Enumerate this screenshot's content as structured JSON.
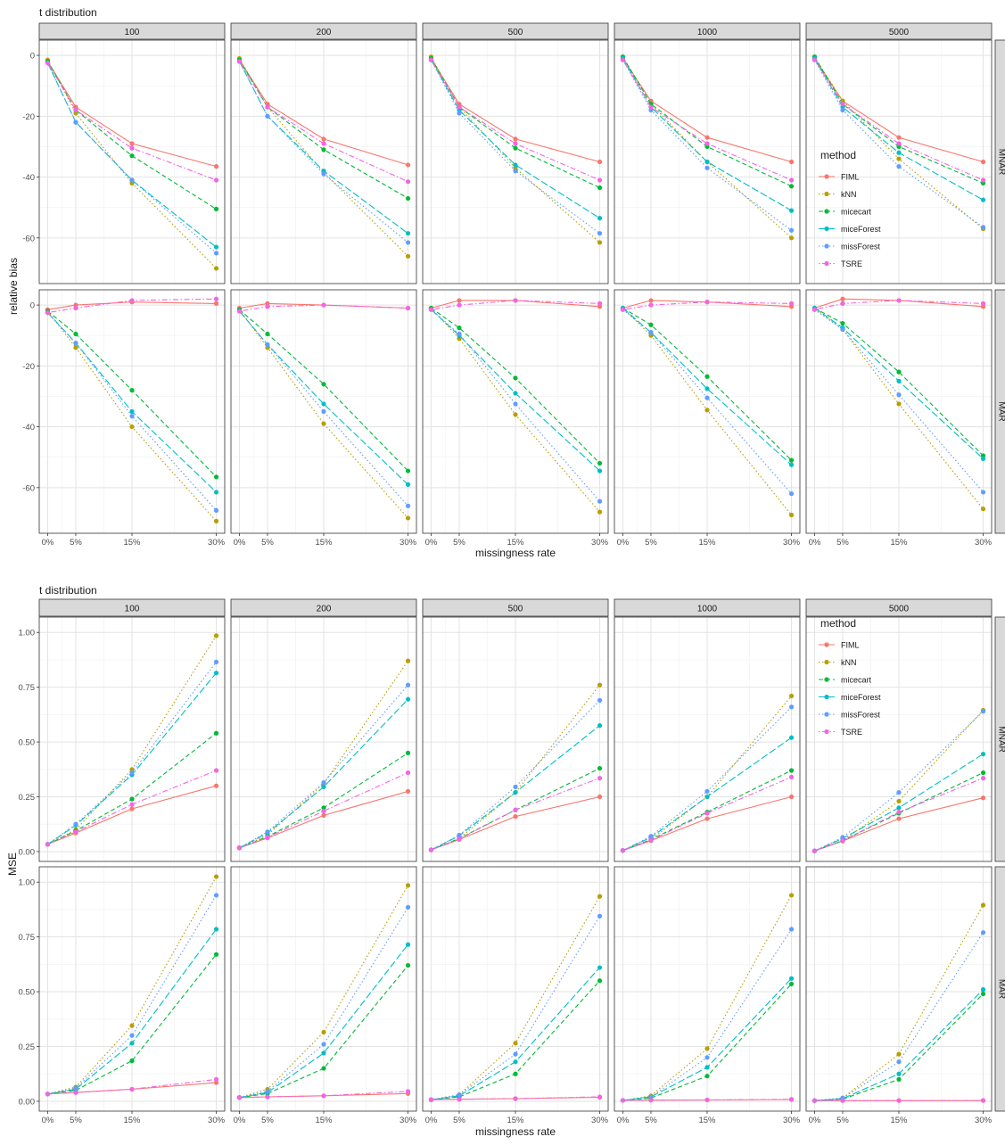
{
  "chart_data": [
    {
      "type": "line",
      "title": "t distribution",
      "xlabel": "missingness rate",
      "ylabel": "relative bias",
      "x": [
        "0%",
        "5%",
        "15%",
        "30%"
      ],
      "x_numeric": [
        0,
        5,
        15,
        30
      ],
      "facet_cols": [
        "100",
        "200",
        "500",
        "1000",
        "5000"
      ],
      "facet_rows": [
        "MNAR",
        "MAR"
      ],
      "ylim": [
        -75,
        5
      ],
      "yticks": [
        0,
        -20,
        -40,
        -60
      ],
      "ytick_labels": [
        "0",
        "-20",
        "-40",
        "-60"
      ],
      "grid": true,
      "legend": {
        "title": "method",
        "placement": "inside-right",
        "panel": "MNAR-5000"
      },
      "series": [
        {
          "name": "FIML",
          "color": "#F8766D",
          "dash": "solid",
          "values": {
            "MNAR": {
              "100": [
                -2,
                -17,
                -29,
                -36.5
              ],
              "200": [
                -1.5,
                -16,
                -27.5,
                -36
              ],
              "500": [
                -1,
                -16,
                -27.5,
                -35
              ],
              "1000": [
                -1,
                -15,
                -27,
                -35
              ],
              "5000": [
                -1,
                -15,
                -27,
                -35
              ]
            },
            "MAR": {
              "100": [
                -1.5,
                0,
                1,
                0.5
              ],
              "200": [
                -1,
                0.5,
                0,
                -1
              ],
              "500": [
                -1,
                1.5,
                1.5,
                -0.5
              ],
              "1000": [
                -1,
                1.5,
                1,
                -0.5
              ],
              "5000": [
                -1,
                2,
                1.5,
                -0.5
              ]
            }
          }
        },
        {
          "name": "kNN",
          "color": "#B79F00",
          "dash": "dotted",
          "values": {
            "MNAR": {
              "100": [
                -1.5,
                -19,
                -42,
                -70
              ],
              "200": [
                -1,
                -17,
                -38.5,
                -66
              ],
              "500": [
                -0.5,
                -17,
                -37,
                -61.5
              ],
              "1000": [
                -0.5,
                -16,
                -35,
                -60
              ],
              "5000": [
                -0.5,
                -15,
                -34,
                -57
              ]
            },
            "MAR": {
              "100": [
                -2,
                -14,
                -40,
                -71
              ],
              "200": [
                -1.5,
                -14,
                -39,
                -70
              ],
              "500": [
                -1,
                -11,
                -36,
                -68
              ],
              "1000": [
                -1,
                -10,
                -34.5,
                -69
              ],
              "5000": [
                -1,
                -8,
                -32.5,
                -67
              ]
            }
          }
        },
        {
          "name": "micecart",
          "color": "#00BA38",
          "dash": "dashed",
          "values": {
            "MNAR": {
              "100": [
                -2,
                -18,
                -33,
                -50.5
              ],
              "200": [
                -1.5,
                -17,
                -31,
                -47
              ],
              "500": [
                -1,
                -17,
                -30.5,
                -43.5
              ],
              "1000": [
                -0.5,
                -16,
                -30,
                -43
              ],
              "5000": [
                -0.5,
                -16,
                -30,
                -42
              ]
            },
            "MAR": {
              "100": [
                -2,
                -9.5,
                -28,
                -56.5
              ],
              "200": [
                -1.5,
                -9.5,
                -26,
                -54.5
              ],
              "500": [
                -1,
                -7.5,
                -24,
                -52
              ],
              "1000": [
                -1,
                -6.5,
                -23.5,
                -51
              ],
              "5000": [
                -1,
                -6,
                -22,
                -49.5
              ]
            }
          }
        },
        {
          "name": "miceForest",
          "color": "#00BFC4",
          "dash": "longdash",
          "values": {
            "MNAR": {
              "100": [
                -2.5,
                -22,
                -41,
                -63
              ],
              "200": [
                -2,
                -20,
                -38,
                -58.5
              ],
              "500": [
                -1.5,
                -18,
                -36,
                -53.5
              ],
              "1000": [
                -1,
                -17,
                -35,
                -51
              ],
              "5000": [
                -1,
                -17,
                -32,
                -47.5
              ]
            },
            "MAR": {
              "100": [
                -2.5,
                -12.5,
                -35,
                -61.5
              ],
              "200": [
                -2,
                -13,
                -32.5,
                -59
              ],
              "500": [
                -1.5,
                -10,
                -29,
                -54.5
              ],
              "1000": [
                -1,
                -9,
                -27.5,
                -52.5
              ],
              "5000": [
                -1,
                -7.5,
                -25,
                -50.5
              ]
            }
          }
        },
        {
          "name": "missForest",
          "color": "#619CFF",
          "dash": "dotted",
          "values": {
            "MNAR": {
              "100": [
                -2.5,
                -22,
                -41,
                -65
              ],
              "200": [
                -2,
                -20,
                -39,
                -61.5
              ],
              "500": [
                -1.5,
                -19,
                -38,
                -58.5
              ],
              "1000": [
                -1.5,
                -18,
                -37,
                -57.5
              ],
              "5000": [
                -1.5,
                -18,
                -36.5,
                -56.5
              ]
            },
            "MAR": {
              "100": [
                -2.5,
                -12.5,
                -36.5,
                -67.5
              ],
              "200": [
                -2,
                -13,
                -35,
                -66
              ],
              "500": [
                -1.5,
                -9.5,
                -32.5,
                -64.5
              ],
              "1000": [
                -1.5,
                -9,
                -30.5,
                -62
              ],
              "5000": [
                -1.5,
                -8,
                -29.5,
                -61.5
              ]
            }
          }
        },
        {
          "name": "TSRE",
          "color": "#F564E3",
          "dash": "dotdash",
          "values": {
            "MNAR": {
              "100": [
                -2.5,
                -18,
                -30.5,
                -41
              ],
              "200": [
                -2,
                -17,
                -29,
                -41.5
              ],
              "500": [
                -1.5,
                -17,
                -29,
                -41
              ],
              "1000": [
                -1.5,
                -17,
                -29,
                -41
              ],
              "5000": [
                -1.5,
                -16,
                -29,
                -41
              ]
            },
            "MAR": {
              "100": [
                -2.5,
                -1,
                1.5,
                2
              ],
              "200": [
                -2,
                -0.5,
                0,
                -1
              ],
              "500": [
                -1.5,
                0,
                1.5,
                0.5
              ],
              "1000": [
                -1.5,
                0,
                1,
                0.5
              ],
              "5000": [
                -1.5,
                0.5,
                1.5,
                0.5
              ]
            }
          }
        }
      ]
    },
    {
      "type": "line",
      "title": "t distribution",
      "xlabel": "missingness rate",
      "ylabel": "MSE",
      "x": [
        "0%",
        "5%",
        "15%",
        "30%"
      ],
      "x_numeric": [
        0,
        5,
        15,
        30
      ],
      "facet_cols": [
        "100",
        "200",
        "500",
        "1000",
        "5000"
      ],
      "facet_rows": [
        "MNAR",
        "MAR"
      ],
      "ylim": [
        -0.045,
        1.07
      ],
      "yticks": [
        0,
        0.25,
        0.5,
        0.75,
        1
      ],
      "ytick_labels": [
        "0.00",
        "0.25",
        "0.50",
        "0.75",
        "1.00"
      ],
      "grid": true,
      "legend": {
        "title": "method",
        "placement": "inside-top-left",
        "panel": "MNAR-5000"
      },
      "series": [
        {
          "name": "FIML",
          "color": "#F8766D",
          "dash": "solid",
          "values": {
            "MNAR": {
              "100": [
                0.033,
                0.085,
                0.195,
                0.3
              ],
              "200": [
                0.017,
                0.062,
                0.165,
                0.275
              ],
              "500": [
                0.008,
                0.055,
                0.16,
                0.25
              ],
              "1000": [
                0.005,
                0.05,
                0.15,
                0.25
              ],
              "5000": [
                0.003,
                0.048,
                0.15,
                0.245
              ]
            },
            "MAR": {
              "100": [
                0.033,
                0.04,
                0.055,
                0.085
              ],
              "200": [
                0.017,
                0.02,
                0.025,
                0.035
              ],
              "500": [
                0.007,
                0.009,
                0.012,
                0.018
              ],
              "1000": [
                0.004,
                0.005,
                0.006,
                0.008
              ],
              "5000": [
                0.003,
                0.003,
                0.003,
                0.003
              ]
            }
          }
        },
        {
          "name": "kNN",
          "color": "#B79F00",
          "dash": "dotted",
          "values": {
            "MNAR": {
              "100": [
                0.033,
                0.1,
                0.375,
                0.985
              ],
              "200": [
                0.017,
                0.075,
                0.31,
                0.87
              ],
              "500": [
                0.008,
                0.06,
                0.27,
                0.76
              ],
              "1000": [
                0.005,
                0.055,
                0.25,
                0.71
              ],
              "5000": [
                0.003,
                0.05,
                0.23,
                0.645
              ]
            },
            "MAR": {
              "100": [
                0.033,
                0.065,
                0.345,
                1.025
              ],
              "200": [
                0.017,
                0.055,
                0.315,
                0.985
              ],
              "500": [
                0.007,
                0.03,
                0.265,
                0.935
              ],
              "1000": [
                0.004,
                0.025,
                0.24,
                0.94
              ],
              "5000": [
                0.003,
                0.015,
                0.215,
                0.895
              ]
            }
          }
        },
        {
          "name": "micecart",
          "color": "#00BA38",
          "dash": "dashed",
          "values": {
            "MNAR": {
              "100": [
                0.033,
                0.095,
                0.24,
                0.54
              ],
              "200": [
                0.017,
                0.068,
                0.2,
                0.45
              ],
              "500": [
                0.008,
                0.06,
                0.19,
                0.38
              ],
              "1000": [
                0.005,
                0.055,
                0.18,
                0.37
              ],
              "5000": [
                0.003,
                0.05,
                0.175,
                0.36
              ]
            },
            "MAR": {
              "100": [
                0.033,
                0.05,
                0.185,
                0.67
              ],
              "200": [
                0.017,
                0.035,
                0.15,
                0.62
              ],
              "500": [
                0.007,
                0.02,
                0.125,
                0.55
              ],
              "1000": [
                0.004,
                0.015,
                0.115,
                0.535
              ],
              "5000": [
                0.003,
                0.01,
                0.1,
                0.49
              ]
            }
          }
        },
        {
          "name": "miceForest",
          "color": "#00BFC4",
          "dash": "longdash",
          "values": {
            "MNAR": {
              "100": [
                0.033,
                0.12,
                0.35,
                0.815
              ],
              "200": [
                0.017,
                0.085,
                0.295,
                0.695
              ],
              "500": [
                0.008,
                0.072,
                0.27,
                0.575
              ],
              "1000": [
                0.005,
                0.065,
                0.25,
                0.52
              ],
              "5000": [
                0.003,
                0.06,
                0.2,
                0.445
              ]
            },
            "MAR": {
              "100": [
                0.033,
                0.055,
                0.265,
                0.785
              ],
              "200": [
                0.017,
                0.04,
                0.22,
                0.715
              ],
              "500": [
                0.007,
                0.025,
                0.18,
                0.61
              ],
              "1000": [
                0.004,
                0.02,
                0.155,
                0.56
              ],
              "5000": [
                0.003,
                0.012,
                0.125,
                0.51
              ]
            }
          }
        },
        {
          "name": "missForest",
          "color": "#619CFF",
          "dash": "dotted",
          "values": {
            "MNAR": {
              "100": [
                0.033,
                0.125,
                0.36,
                0.865
              ],
              "200": [
                0.017,
                0.09,
                0.315,
                0.76
              ],
              "500": [
                0.008,
                0.075,
                0.295,
                0.69
              ],
              "1000": [
                0.005,
                0.07,
                0.275,
                0.66
              ],
              "5000": [
                0.003,
                0.065,
                0.27,
                0.64
              ]
            },
            "MAR": {
              "100": [
                0.033,
                0.06,
                0.3,
                0.94
              ],
              "200": [
                0.017,
                0.045,
                0.26,
                0.885
              ],
              "500": [
                0.007,
                0.03,
                0.215,
                0.845
              ],
              "1000": [
                0.004,
                0.02,
                0.2,
                0.785
              ],
              "5000": [
                0.003,
                0.015,
                0.18,
                0.77
              ]
            }
          }
        },
        {
          "name": "TSRE",
          "color": "#F564E3",
          "dash": "dotdash",
          "values": {
            "MNAR": {
              "100": [
                0.033,
                0.09,
                0.215,
                0.37
              ],
              "200": [
                0.017,
                0.065,
                0.185,
                0.36
              ],
              "500": [
                0.008,
                0.058,
                0.19,
                0.335
              ],
              "1000": [
                0.005,
                0.052,
                0.175,
                0.34
              ],
              "5000": [
                0.003,
                0.05,
                0.18,
                0.335
              ]
            },
            "MAR": {
              "100": [
                0.033,
                0.04,
                0.055,
                0.1
              ],
              "200": [
                0.017,
                0.02,
                0.025,
                0.045
              ],
              "500": [
                0.007,
                0.009,
                0.012,
                0.02
              ],
              "1000": [
                0.004,
                0.005,
                0.006,
                0.009
              ],
              "5000": [
                0.003,
                0.003,
                0.003,
                0.004
              ]
            }
          }
        }
      ]
    }
  ]
}
